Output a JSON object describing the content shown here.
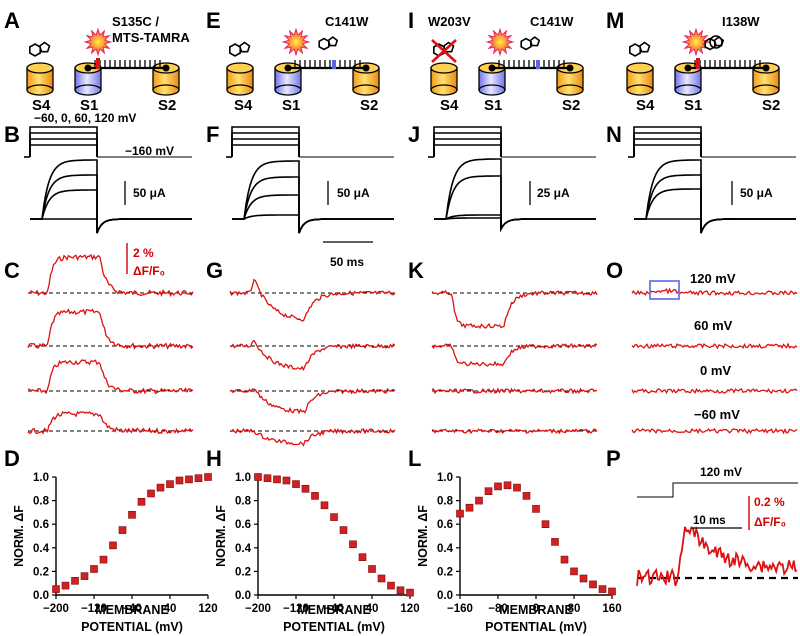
{
  "panels": {
    "A": {
      "letter": "A",
      "mut1": "S135C /",
      "mut2": "MTS-TAMRA",
      "s4": "S4",
      "s1": "S1",
      "s2": "S2"
    },
    "E": {
      "letter": "E",
      "mut1": "C141W",
      "s4": "S4",
      "s1": "S1",
      "s2": "S2"
    },
    "I": {
      "letter": "I",
      "mut1": "W203V",
      "mut2": "C141W",
      "s4": "S4",
      "s1": "S1",
      "s2": "S2"
    },
    "M": {
      "letter": "M",
      "mut1": "I138W",
      "s4": "S4",
      "s1": "S1",
      "s2": "S2"
    },
    "B": {
      "letter": "B",
      "protocol": "−60, 0, 60, 120 mV",
      "hold": "−160 mV",
      "scale": "50 μA"
    },
    "F": {
      "letter": "F",
      "scale": "50 μA",
      "time_scale": "50 ms"
    },
    "J": {
      "letter": "J",
      "scale": "25 μA"
    },
    "N": {
      "letter": "N",
      "scale": "50 μA"
    },
    "C": {
      "letter": "C",
      "scale1": "2 %",
      "scale2": "ΔF/F₀"
    },
    "G": {
      "letter": "G"
    },
    "K": {
      "letter": "K"
    },
    "O": {
      "letter": "O",
      "v1": "120 mV",
      "v2": "60 mV",
      "v3": "0 mV",
      "v4": "−60 mV"
    },
    "D": {
      "letter": "D"
    },
    "H": {
      "letter": "H"
    },
    "L": {
      "letter": "L"
    },
    "P": {
      "letter": "P",
      "voltage": "120 mV",
      "time_scale": "10 ms",
      "scale1": "0.2 %",
      "scale2": "ΔF/F₀"
    }
  },
  "axis": {
    "ylabel": "NORM. ΔF",
    "xlabel1": "MEMBRANE",
    "xlabel2": "POTENTIAL (mV)"
  },
  "chart_data": [
    {
      "type": "scatter",
      "panel": "D",
      "xlabel": "MEMBRANE POTENTIAL (mV)",
      "ylabel": "NORM. ΔF",
      "xlim": [
        -200,
        120
      ],
      "ylim": [
        0,
        1
      ],
      "xticks": [
        "−200",
        "−120",
        "−40",
        "40",
        "120"
      ],
      "yticks": [
        "0.0",
        "0.2",
        "0.4",
        "0.6",
        "0.8",
        "1.0"
      ],
      "x": [
        -200,
        -180,
        -160,
        -140,
        -120,
        -100,
        -80,
        -60,
        -40,
        -20,
        0,
        20,
        40,
        60,
        80,
        100,
        120
      ],
      "y": [
        0.05,
        0.08,
        0.12,
        0.16,
        0.22,
        0.3,
        0.42,
        0.55,
        0.68,
        0.79,
        0.86,
        0.91,
        0.94,
        0.97,
        0.98,
        0.99,
        1.0
      ]
    },
    {
      "type": "scatter",
      "panel": "H",
      "xlabel": "MEMBRANE POTENTIAL (mV)",
      "ylabel": "NORM. ΔF",
      "xlim": [
        -200,
        120
      ],
      "ylim": [
        0,
        1
      ],
      "xticks": [
        "−200",
        "−120",
        "−40",
        "40",
        "120"
      ],
      "yticks": [
        "0.0",
        "0.2",
        "0.4",
        "0.6",
        "0.8",
        "1.0"
      ],
      "x": [
        -200,
        -180,
        -160,
        -140,
        -120,
        -100,
        -80,
        -60,
        -40,
        -20,
        0,
        20,
        40,
        60,
        80,
        100,
        120
      ],
      "y": [
        1.0,
        0.99,
        0.98,
        0.97,
        0.94,
        0.9,
        0.84,
        0.76,
        0.66,
        0.55,
        0.43,
        0.32,
        0.22,
        0.14,
        0.08,
        0.04,
        0.02
      ]
    },
    {
      "type": "scatter",
      "panel": "L",
      "xlabel": "MEMBRANE POTENTIAL (mV)",
      "ylabel": "NORM. ΔF",
      "xlim": [
        -160,
        160
      ],
      "ylim": [
        0,
        1
      ],
      "xticks": [
        "−160",
        "−80",
        "0",
        "80",
        "160"
      ],
      "yticks": [
        "0.0",
        "0.2",
        "0.4",
        "0.6",
        "0.8",
        "1.0"
      ],
      "x": [
        -160,
        -140,
        -120,
        -100,
        -80,
        -60,
        -40,
        -20,
        0,
        20,
        40,
        60,
        80,
        100,
        120,
        140,
        160
      ],
      "y": [
        0.69,
        0.74,
        0.8,
        0.88,
        0.92,
        0.93,
        0.91,
        0.84,
        0.73,
        0.6,
        0.45,
        0.3,
        0.2,
        0.14,
        0.09,
        0.05,
        0.03
      ]
    }
  ],
  "colors": {
    "trace": "#dd1111",
    "marker": "#d42020",
    "s4": "#f5a81f",
    "s1": "#8b8ef0",
    "s2": "#f5a81f",
    "burst": "#f0447a"
  }
}
